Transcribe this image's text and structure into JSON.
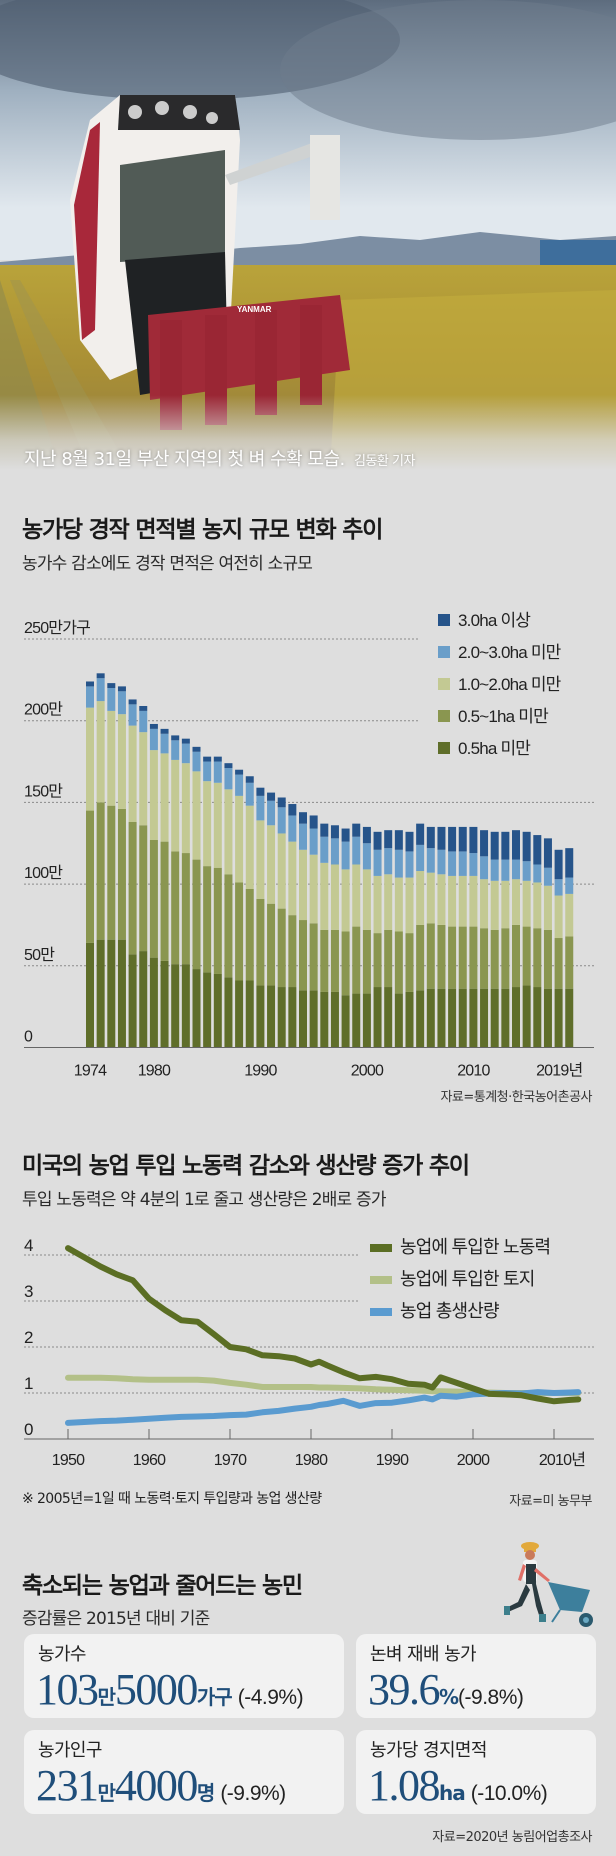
{
  "photo": {
    "caption": "지난 8월 31일 부산 지역의 첫 벼 수확 모습.",
    "credit": "김동환 기자",
    "machine_brand": "YANMAR"
  },
  "section1": {
    "title": "농가당 경작 면적별 농지 규모 변화 추이",
    "subtitle": "농가수 감소에도 경작 면적은 여전히 소규모",
    "source": "자료=통계청·한국농어촌공사"
  },
  "section2": {
    "title": "미국의 농업 투입 노동력 감소와 생산량 증가 추이",
    "subtitle": "투입 노동력은 약 4분의 1로 줄고 생산량은 2배로 증가",
    "note": "※ 2005년=1일 때 노동력·토지 투입량과 농업 생산량",
    "source": "자료=미 농무부"
  },
  "section3": {
    "title": "축소되는 농업과 줄어드는 농민",
    "subtitle": "증감률은 2015년 대비 기준",
    "source": "자료=2020년 농림어업총조사",
    "cards": [
      {
        "label": "농가수",
        "number1": "103",
        "unit1": "만",
        "number2": "5000",
        "unit2": "가구",
        "change": "(-4.9%)"
      },
      {
        "label": "논벼 재배 농가",
        "number1": "39.6",
        "unit1": "%",
        "number2": "",
        "unit2": "",
        "change": "(-9.8%)"
      },
      {
        "label": "농가인구",
        "number1": "231",
        "unit1": "만",
        "number2": "4000",
        "unit2": "명",
        "change": "(-9.9%)"
      },
      {
        "label": "농가당 경지면적",
        "number1": "1.08",
        "unit1": "ha",
        "number2": "",
        "unit2": "",
        "change": "(-10.0%)"
      }
    ]
  },
  "chart_data": [
    {
      "type": "bar",
      "stacked": true,
      "title": "농가당 경작 면적별 농지 규모 변화 추이",
      "ylabel": "",
      "ylim": [
        0,
        250
      ],
      "y_ticks": [
        0,
        50,
        100,
        150,
        200,
        250
      ],
      "y_tick_labels": [
        "0",
        "50만",
        "100만",
        "150만",
        "200만",
        "250만가구"
      ],
      "x_tick_labels": [
        {
          "year": 1974,
          "label": "1974"
        },
        {
          "year": 1980,
          "label": "1980"
        },
        {
          "year": 1990,
          "label": "1990"
        },
        {
          "year": 2000,
          "label": "2000"
        },
        {
          "year": 2010,
          "label": "2010"
        },
        {
          "year": 2019,
          "label": "2019년"
        }
      ],
      "grid": true,
      "legend_position": "top-right",
      "categories": [
        1974,
        1975,
        1976,
        1977,
        1978,
        1979,
        1980,
        1981,
        1982,
        1983,
        1984,
        1985,
        1986,
        1987,
        1988,
        1989,
        1990,
        1991,
        1992,
        1993,
        1994,
        1995,
        1996,
        1997,
        1998,
        1999,
        2000,
        2001,
        2002,
        2003,
        2004,
        2005,
        2006,
        2007,
        2008,
        2009,
        2010,
        2011,
        2012,
        2013,
        2014,
        2015,
        2016,
        2017,
        2018,
        2019
      ],
      "series": [
        {
          "name": "0.5ha 미만",
          "color": "#5f6e2a",
          "values": [
            64,
            66,
            66,
            66,
            57,
            59,
            55,
            53,
            51,
            51,
            48,
            46,
            45,
            43,
            41,
            41,
            38,
            38,
            37,
            37,
            35,
            35,
            34,
            34,
            32,
            33,
            33,
            37,
            37,
            33,
            34,
            35,
            36,
            36,
            36,
            36,
            36,
            36,
            36,
            36,
            37,
            38,
            37,
            36,
            36,
            36
          ]
        },
        {
          "name": "0.5~1ha 미만",
          "color": "#8a9650",
          "values": [
            81,
            84,
            82,
            80,
            81,
            77,
            72,
            73,
            69,
            68,
            67,
            65,
            65,
            63,
            60,
            56,
            53,
            50,
            48,
            44,
            43,
            41,
            38,
            38,
            39,
            41,
            39,
            33,
            35,
            38,
            36,
            40,
            40,
            39,
            38,
            38,
            38,
            37,
            36,
            37,
            38,
            36,
            36,
            36,
            31,
            32
          ]
        },
        {
          "name": "1.0~2.0ha 미만",
          "color": "#c3c993",
          "values": [
            63,
            62,
            58,
            58,
            59,
            57,
            55,
            54,
            56,
            55,
            54,
            52,
            52,
            52,
            53,
            51,
            48,
            48,
            46,
            45,
            43,
            42,
            41,
            40,
            38,
            38,
            37,
            35,
            34,
            33,
            34,
            33,
            31,
            31,
            31,
            31,
            31,
            30,
            30,
            29,
            28,
            28,
            28,
            27,
            26,
            26
          ]
        },
        {
          "name": "2.0~3.0ha 미만",
          "color": "#6a9ec9",
          "values": [
            13,
            14,
            14,
            14,
            13,
            13,
            13,
            12,
            12,
            12,
            12,
            12,
            13,
            13,
            13,
            14,
            15,
            15,
            16,
            16,
            16,
            16,
            16,
            16,
            17,
            17,
            16,
            16,
            16,
            17,
            16,
            16,
            15,
            15,
            15,
            15,
            14,
            14,
            13,
            13,
            12,
            12,
            11,
            11,
            10,
            10
          ]
        },
        {
          "name": "3.0ha 이상",
          "color": "#26548a",
          "values": [
            3,
            3,
            3,
            3,
            3,
            3,
            3,
            3,
            3,
            3,
            3,
            3,
            3,
            3,
            3,
            4,
            5,
            5,
            6,
            7,
            7,
            8,
            8,
            8,
            8,
            8,
            10,
            11,
            11,
            12,
            12,
            13,
            13,
            14,
            15,
            15,
            16,
            16,
            17,
            17,
            18,
            18,
            18,
            18,
            18,
            18
          ]
        }
      ]
    },
    {
      "type": "line",
      "title": "미국의 농업 투입 노동력 감소와 생산량 증가 추이",
      "ylim": [
        0,
        4
      ],
      "y_ticks": [
        0,
        1,
        2,
        3,
        4
      ],
      "y_tick_labels": [
        "0",
        "1",
        "2",
        "3",
        "4"
      ],
      "xlim": [
        1950,
        2013
      ],
      "x_ticks": [
        1950,
        1960,
        1970,
        1980,
        1990,
        2000,
        2010
      ],
      "x_tick_labels": [
        "1950",
        "1960",
        "1970",
        "1980",
        "1990",
        "2000",
        "2010년"
      ],
      "grid": true,
      "legend_position": "top-right",
      "x": [
        1950,
        1952,
        1954,
        1956,
        1958,
        1960,
        1962,
        1964,
        1966,
        1968,
        1970,
        1972,
        1974,
        1976,
        1978,
        1980,
        1981,
        1982,
        1984,
        1986,
        1988,
        1990,
        1992,
        1994,
        1995,
        1996,
        1998,
        2000,
        2002,
        2004,
        2006,
        2008,
        2010,
        2012,
        2013
      ],
      "series": [
        {
          "name": "농업에 투입한 노동력",
          "color": "#5b6e24",
          "values": [
            4.15,
            3.95,
            3.75,
            3.58,
            3.45,
            3.05,
            2.8,
            2.58,
            2.55,
            2.28,
            2.0,
            1.95,
            1.82,
            1.8,
            1.75,
            1.62,
            1.68,
            1.6,
            1.45,
            1.32,
            1.35,
            1.3,
            1.2,
            1.18,
            1.12,
            1.34,
            1.22,
            1.1,
            0.98,
            0.97,
            0.95,
            0.88,
            0.82,
            0.85,
            0.86
          ]
        },
        {
          "name": "농업에 투입한 토지",
          "color": "#b3c088",
          "values": [
            1.33,
            1.33,
            1.33,
            1.32,
            1.3,
            1.29,
            1.29,
            1.29,
            1.29,
            1.27,
            1.22,
            1.18,
            1.13,
            1.13,
            1.13,
            1.13,
            1.12,
            1.12,
            1.11,
            1.1,
            1.08,
            1.07,
            1.06,
            1.05,
            1.04,
            1.04,
            1.03,
            1.02,
            1.01,
            1.0,
            1.0,
            1.0,
            1.0,
            1.0,
            1.0
          ]
        },
        {
          "name": "농업 총생산량",
          "color": "#5a9bd0",
          "values": [
            0.35,
            0.37,
            0.39,
            0.4,
            0.42,
            0.44,
            0.46,
            0.48,
            0.49,
            0.5,
            0.52,
            0.53,
            0.58,
            0.61,
            0.66,
            0.7,
            0.74,
            0.76,
            0.83,
            0.72,
            0.78,
            0.79,
            0.84,
            0.9,
            0.86,
            0.94,
            0.92,
            0.97,
            0.99,
            1.0,
            0.99,
            1.02,
            1.0,
            1.01,
            1.02
          ]
        }
      ]
    }
  ]
}
